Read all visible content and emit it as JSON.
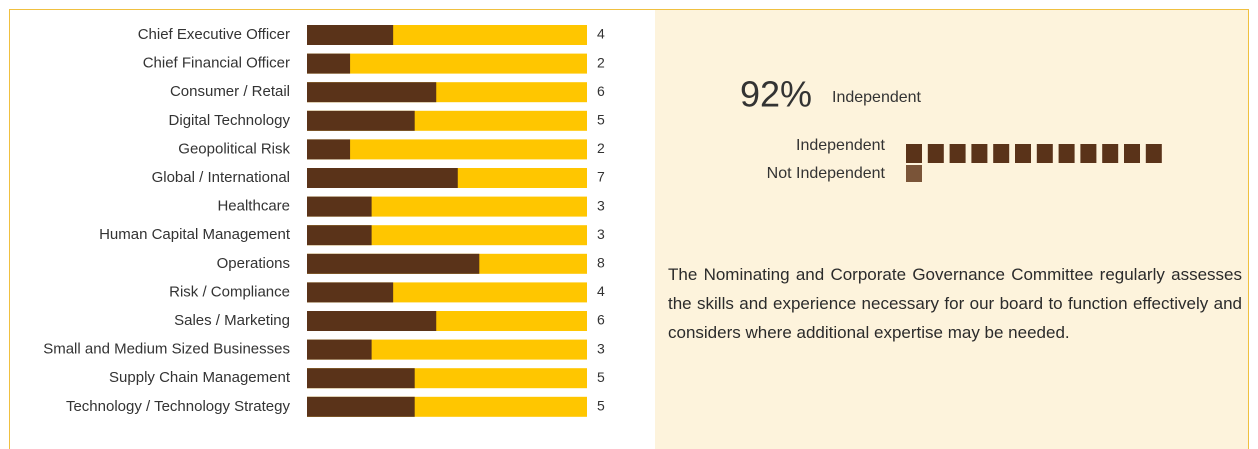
{
  "chart_data": [
    {
      "type": "bar",
      "categories": [
        "Chief Executive Officer",
        "Chief Financial Officer",
        "Consumer / Retail",
        "Digital Technology",
        "Geopolitical Risk",
        "Global / International",
        "Healthcare",
        "Human Capital Management",
        "Operations",
        "Risk / Compliance",
        "Sales / Marketing",
        "Small and Medium Sized Businesses",
        "Supply Chain Management",
        "Technology / Technology Strategy"
      ],
      "values": [
        4,
        2,
        6,
        5,
        2,
        7,
        3,
        3,
        8,
        4,
        6,
        3,
        5,
        5
      ],
      "xlim": [
        0,
        13
      ],
      "color": "#5a3319",
      "track_color": "#ffc600"
    },
    {
      "type": "waffle",
      "headline": {
        "value": 92,
        "label": "92%",
        "caption": "Independent"
      },
      "categories": [
        "Independent",
        "Not Independent"
      ],
      "values": [
        12,
        1
      ],
      "colors": [
        "#5a3319",
        "#7a5438"
      ]
    }
  ],
  "description": "The Nominating and Corporate Governance Committee regularly assesses the skills and experience necessary for our board to function effectively and considers where additional expertise may be needed."
}
